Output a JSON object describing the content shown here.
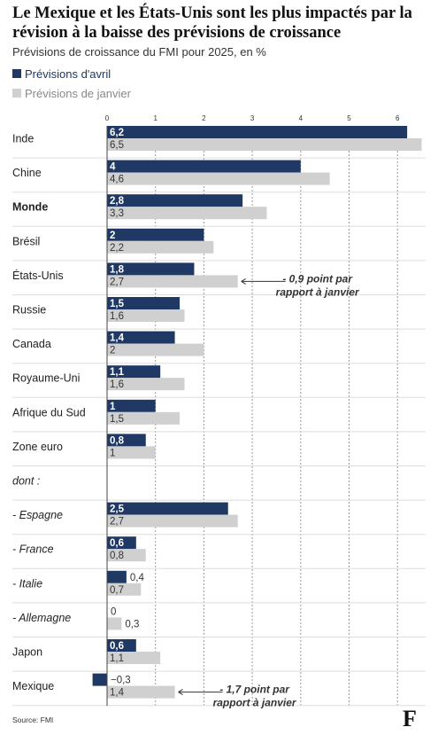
{
  "title": "Le Mexique et les États-Unis sont les plus impactés par la révision à la baisse des prévisions de croissance",
  "subtitle": "Prévisions de croissance du FMI pour 2025, en %",
  "source": "Source: FMI",
  "logo": "F",
  "colors": {
    "april": "#1f3864",
    "january": "#d0d0d0",
    "grid": "#9a9a9a",
    "separator": "#dddddd"
  },
  "chart_data": {
    "type": "bar",
    "orientation": "horizontal",
    "x_ticks": [
      0,
      1,
      2,
      3,
      4,
      5,
      6
    ],
    "xlim": [
      0,
      6.5
    ],
    "categories": [
      "Inde",
      "Chine",
      "Monde",
      "Brésil",
      "États-Unis",
      "Russie",
      "Canada",
      "Royaume-Uni",
      "Afrique du Sud",
      "Zone euro",
      "dont :",
      "- Espagne",
      "- France",
      "- Italie",
      "- Allemagne",
      "Japon",
      "Mexique"
    ],
    "category_style": [
      "normal",
      "normal",
      "bold",
      "normal",
      "normal",
      "normal",
      "normal",
      "normal",
      "normal",
      "normal",
      "italic",
      "italic",
      "italic",
      "italic",
      "italic",
      "normal",
      "normal"
    ],
    "series": [
      {
        "name": "Prévisions d'avril",
        "values": [
          6.2,
          4,
          2.8,
          2,
          1.8,
          1.5,
          1.4,
          1.1,
          1,
          0.8,
          null,
          2.5,
          0.6,
          0.4,
          0,
          0.6,
          -0.3
        ],
        "labels": [
          "6,2",
          "4",
          "2,8",
          "2",
          "1,8",
          "1,5",
          "1,4",
          "1,1",
          "1",
          "0,8",
          "",
          "2,5",
          "0,6",
          "0,4",
          "0",
          "0,6",
          "−0,3"
        ]
      },
      {
        "name": "Prévisions de janvier",
        "values": [
          6.5,
          4.6,
          3.3,
          2.2,
          2.7,
          1.6,
          2,
          1.6,
          1.5,
          1,
          null,
          2.7,
          0.8,
          0.7,
          0.3,
          1.1,
          1.4
        ],
        "labels": [
          "6,5",
          "4,6",
          "3,3",
          "2,2",
          "2,7",
          "1,6",
          "2",
          "1,6",
          "1,5",
          "1",
          "",
          "2,7",
          "0,8",
          "0,7",
          "0,3",
          "1,1",
          "1,4"
        ]
      }
    ],
    "annotations": [
      {
        "category": "États-Unis",
        "lines": [
          "- 0,9 point par",
          "rapport à janvier"
        ]
      },
      {
        "category": "Mexique",
        "lines": [
          "- 1,7 point par",
          "rapport à janvier"
        ]
      }
    ],
    "legend_position": "top-left",
    "grid": true
  }
}
